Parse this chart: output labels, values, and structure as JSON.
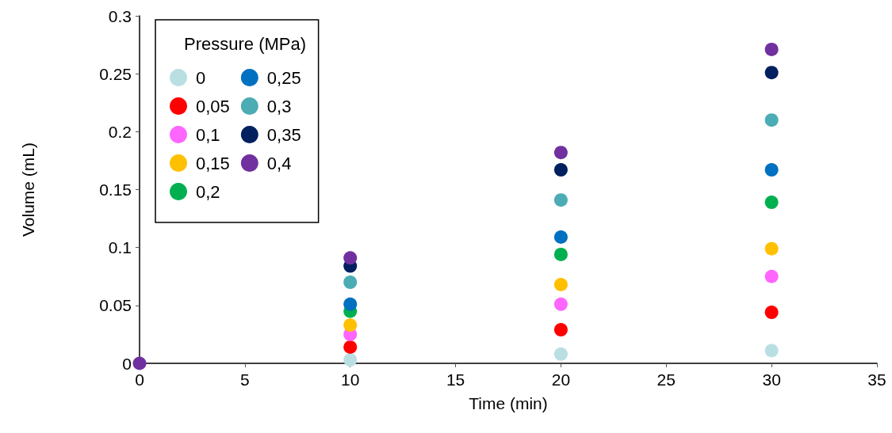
{
  "chart_data": {
    "type": "scatter",
    "xlabel": "Time (min)",
    "ylabel": "Volume (mL)",
    "legend_title": "Pressure (MPa)",
    "x": [
      0,
      10,
      20,
      30
    ],
    "series": [
      {
        "name": "0",
        "color": "#b9dfe3",
        "values": [
          null,
          0.003,
          0.008,
          0.011
        ]
      },
      {
        "name": "0,05",
        "color": "#ff0000",
        "values": [
          null,
          0.014,
          0.029,
          0.044
        ]
      },
      {
        "name": "0,1",
        "color": "#ff66ff",
        "values": [
          null,
          0.025,
          0.051,
          0.075
        ]
      },
      {
        "name": "0,15",
        "color": "#ffc000",
        "values": [
          null,
          0.033,
          0.068,
          0.099
        ]
      },
      {
        "name": "0,2",
        "color": "#00b050",
        "values": [
          null,
          0.045,
          0.094,
          0.139
        ]
      },
      {
        "name": "0,25",
        "color": "#0070c0",
        "values": [
          null,
          0.051,
          0.109,
          0.167
        ]
      },
      {
        "name": "0,3",
        "color": "#4bacb4",
        "values": [
          null,
          0.07,
          0.141,
          0.21
        ]
      },
      {
        "name": "0,35",
        "color": "#002060",
        "values": [
          null,
          0.084,
          0.167,
          0.251
        ]
      },
      {
        "name": "0,4",
        "color": "#7030a0",
        "values": [
          0,
          0.091,
          0.182,
          0.271
        ]
      }
    ],
    "xlim": [
      0,
      35
    ],
    "xticks": [
      0,
      5,
      10,
      15,
      20,
      25,
      30,
      35
    ],
    "ylim": [
      0,
      0.3
    ],
    "yticks": [
      0,
      0.05,
      0.1,
      0.15,
      0.2,
      0.25,
      0.3
    ],
    "grid": false,
    "legend": "top left",
    "marker": "circle"
  }
}
